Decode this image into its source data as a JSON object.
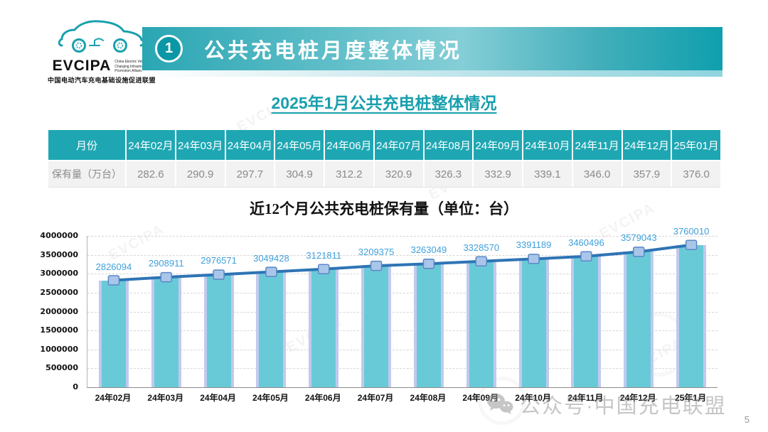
{
  "logo": {
    "acronym": "EVCIPA",
    "subtext_lines": [
      "China Electric Vehicle",
      "Charging Infrastructure",
      "Promotion Alliance"
    ],
    "chinese_name": "中国电动汽车充电基础设施促进联盟"
  },
  "header": {
    "badge_number": "1",
    "title": "公共充电桩月度整体情况"
  },
  "section_title": "2025年1月公共充电桩整体情况",
  "table": {
    "corner_header": "月份",
    "month_columns": [
      "24年02月",
      "24年03月",
      "24年04月",
      "24年05月",
      "24年06月",
      "24年07月",
      "24年08月",
      "24年09月",
      "24年10月",
      "24年11月",
      "24年12月",
      "25年01月"
    ],
    "row_label": "保有量（万台）",
    "values": [
      "282.6",
      "290.9",
      "297.7",
      "304.9",
      "312.2",
      "320.9",
      "326.3",
      "332.9",
      "339.1",
      "346.0",
      "357.9",
      "376.0"
    ]
  },
  "chart_data": {
    "type": "bar",
    "overlay": "line",
    "title": "近12个月公共充电桩保有量（单位：台）",
    "categories": [
      "24年02月",
      "24年03月",
      "24年04月",
      "24年05月",
      "24年06月",
      "24年07月",
      "24年08月",
      "24年09月",
      "24年10月",
      "24年11月",
      "24年12月",
      "25年1月"
    ],
    "values": [
      2826094,
      2908911,
      2976571,
      3049428,
      3121811,
      3209375,
      3263049,
      3328570,
      3391189,
      3460496,
      3579043,
      3760010
    ],
    "ylim": [
      0,
      4000000
    ],
    "ytick_step": 500000,
    "grid": true,
    "legend": "none",
    "colors": {
      "bar": "#69cad7",
      "bar_edge": "#c0caee",
      "line": "#2e74b5",
      "marker_fill": "#a9c6ea",
      "marker_border": "#5b87c5",
      "data_label": "#3fa0db"
    }
  },
  "watermark": {
    "icon": "wechat-icon",
    "text": "公众号·中国充电联盟"
  },
  "background_watermark": "EVCIPA",
  "page_number": "5",
  "accent_colors": {
    "banner_teal": "#12a0ae",
    "banner_light": "#85ced7",
    "table_header_teal": "#1ea7b3",
    "section_title_teal": "#189fad",
    "logo_teal": "#1aa0ae"
  }
}
